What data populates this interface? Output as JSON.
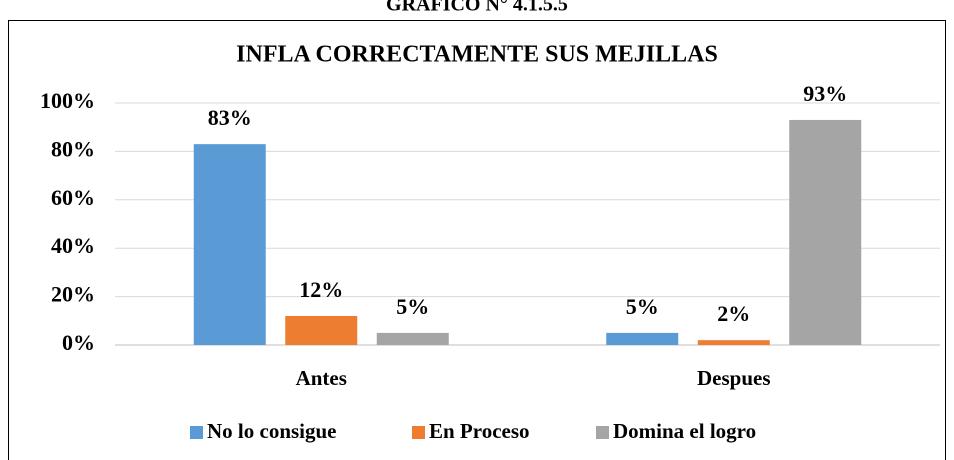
{
  "chart_data": {
    "type": "bar",
    "heading": "GRAFICO N° 4.1.5.5",
    "title": "INFLA CORRECTAMENTE SUS MEJILLAS",
    "categories": [
      "Antes",
      "Despues"
    ],
    "series": [
      {
        "name": "No lo consigue",
        "color": "#5b9bd5",
        "values": [
          83,
          5
        ],
        "value_labels": [
          "83%",
          "5%"
        ]
      },
      {
        "name": "En Proceso",
        "color": "#ed7d31",
        "values": [
          12,
          2
        ],
        "value_labels": [
          "12%",
          "2%"
        ]
      },
      {
        "name": "Domina el logro",
        "color": "#a5a5a5",
        "values": [
          5,
          93
        ],
        "value_labels": [
          "5%",
          "93%"
        ]
      }
    ],
    "ylim": [
      0,
      100
    ],
    "yticks": [
      {
        "value": 0,
        "label": "0%"
      },
      {
        "value": 20,
        "label": "20%"
      },
      {
        "value": 40,
        "label": "40%"
      },
      {
        "value": 60,
        "label": "60%"
      },
      {
        "value": 80,
        "label": "80%"
      },
      {
        "value": 100,
        "label": "100%"
      }
    ],
    "grid": true,
    "legend": "bottom"
  }
}
